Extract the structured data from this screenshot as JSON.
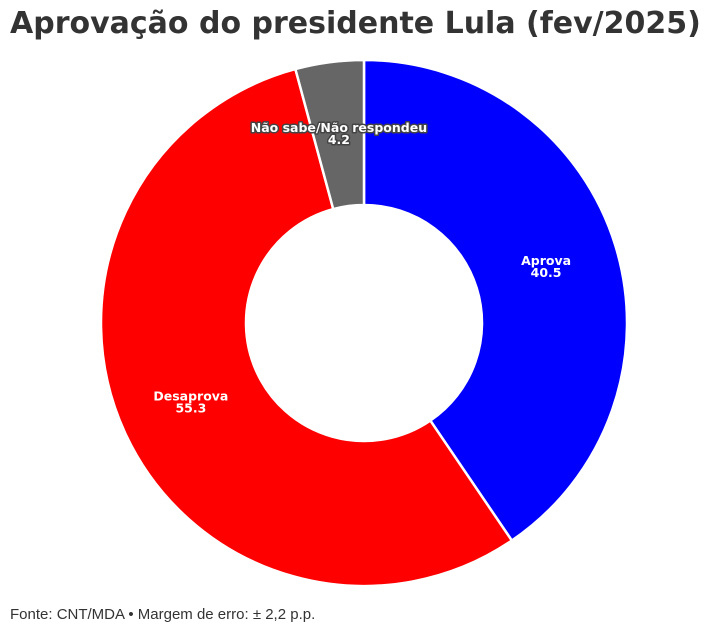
{
  "title": "Aprovação do presidente Lula (fev/2025)",
  "source": "Fonte: CNT/MDA • Margem de erro: ± 2,2 p.p.",
  "chart_data": {
    "type": "pie",
    "donut": true,
    "start_angle_deg": 0,
    "direction": "clockwise",
    "slices": [
      {
        "label": "Aprova",
        "value": 40.5,
        "value_label": "40.5",
        "color": "#0000ff"
      },
      {
        "label": "Desaprova",
        "value": 55.3,
        "value_label": "55.3",
        "color": "#ff0000"
      },
      {
        "label": "Não sabe/Não respondeu",
        "value": 4.2,
        "value_label": "4.2",
        "color": "#666666"
      }
    ],
    "legend": "none"
  }
}
